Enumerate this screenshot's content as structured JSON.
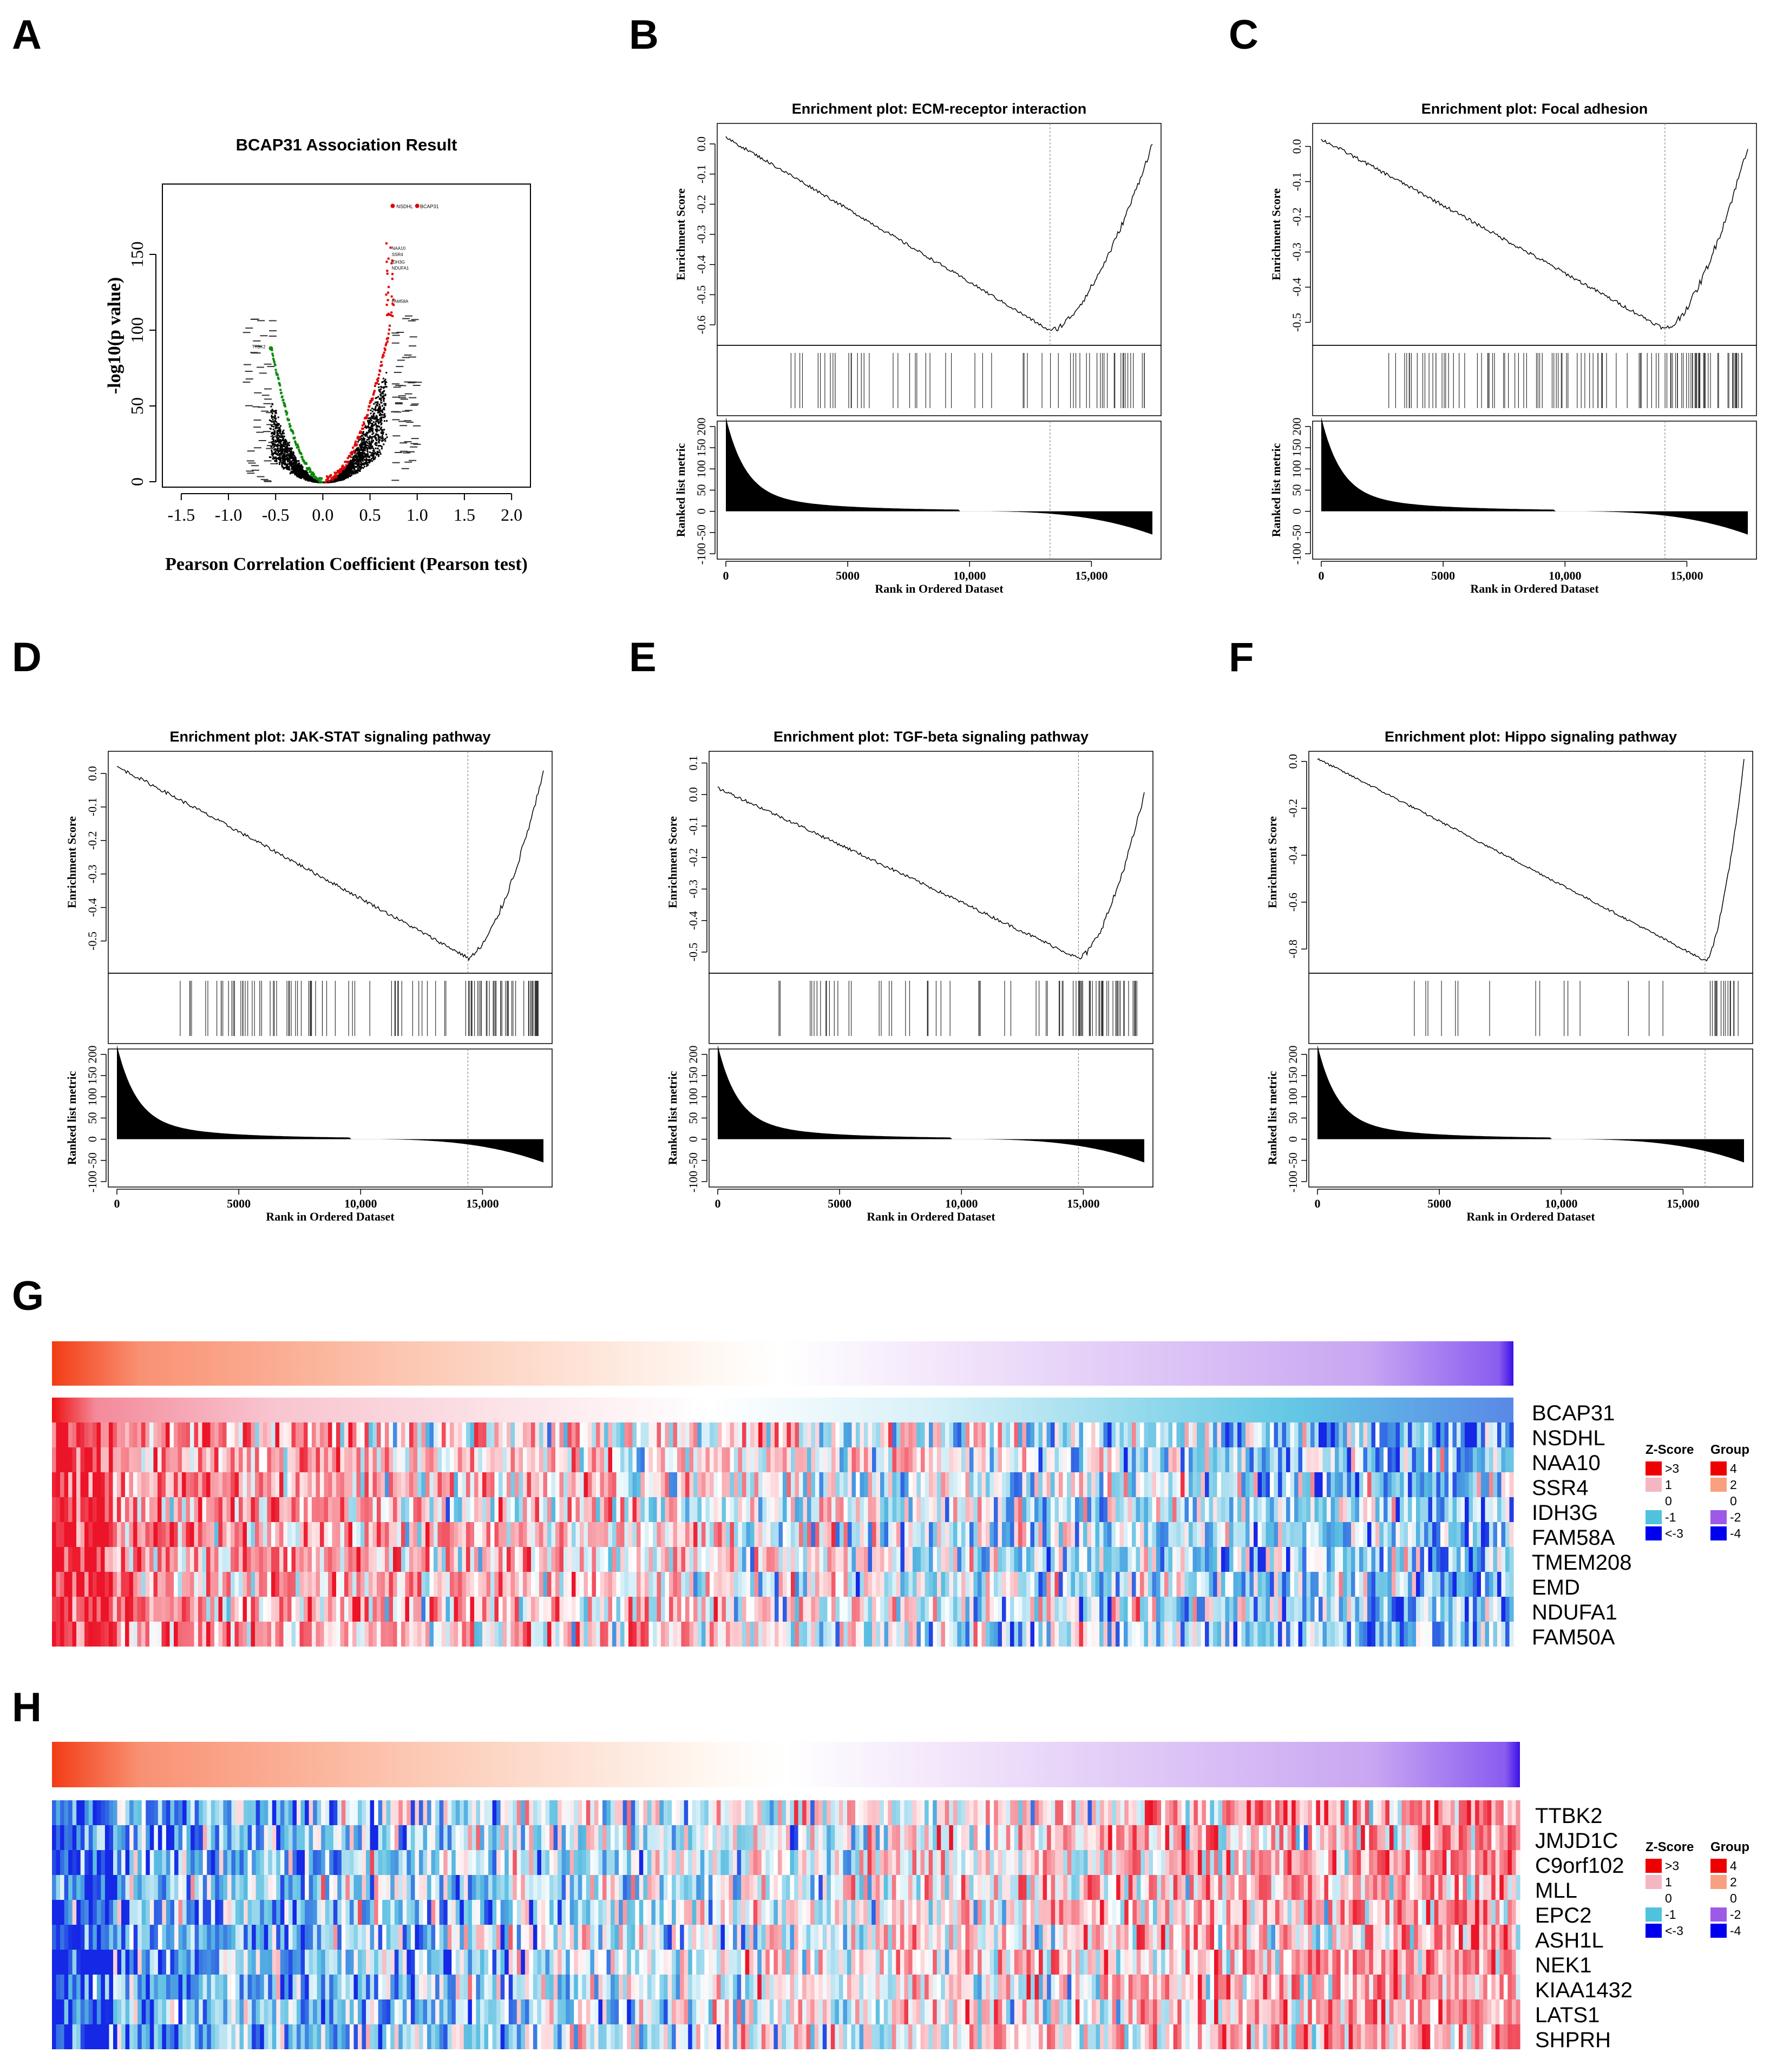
{
  "panels": {
    "A": "A",
    "B": "B",
    "C": "C",
    "D": "D",
    "E": "E",
    "F": "F",
    "G": "G",
    "H": "H"
  },
  "volcano": {
    "title": "BCAP31 Association Result",
    "xlabel": "Pearson Correlation Coefficient (Pearson test)",
    "ylabel": "-log10(p value)",
    "x_ticks": [
      "-1.5",
      "-1.0",
      "-0.5",
      "0.0",
      "0.5",
      "1.0",
      "1.5",
      "2.0"
    ],
    "y_ticks": [
      "0",
      "50",
      "100",
      "150"
    ],
    "top_labels": [
      "NSDHL",
      "BCAP31",
      "NAA10",
      "SSR4",
      "IDH3G",
      "NDUFA1",
      "FAM58A",
      "TTBK2"
    ]
  },
  "gsea_common": {
    "es_label": "Enrichment Score",
    "metric_label": "Ranked list metric",
    "xlabel": "Rank in Ordered Dataset",
    "x_ticks": [
      "0",
      "5000",
      "10,000",
      "15,000"
    ],
    "metric_ticks": [
      "-100",
      "-50",
      "0",
      "50",
      "100",
      "150",
      "200"
    ]
  },
  "gsea": [
    {
      "panel": "B",
      "title": "Enrichment plot: ECM-receptor interaction",
      "es_ticks": [
        "0.0",
        "-0.1",
        "-0.2",
        "-0.3",
        "-0.4",
        "-0.5",
        "-0.6"
      ]
    },
    {
      "panel": "C",
      "title": "Enrichment plot: Focal adhesion",
      "es_ticks": [
        "0.0",
        "-0.1",
        "-0.2",
        "-0.3",
        "-0.4",
        "-0.5"
      ]
    },
    {
      "panel": "D",
      "title": "Enrichment plot: JAK-STAT signaling pathway",
      "es_ticks": [
        "0.0",
        "-0.1",
        "-0.2",
        "-0.3",
        "-0.4",
        "-0.5"
      ]
    },
    {
      "panel": "E",
      "title": "Enrichment plot: TGF-beta signaling pathway",
      "es_ticks": [
        "0.1",
        "0.0",
        "-0.1",
        "-0.2",
        "-0.3",
        "-0.4",
        "-0.5"
      ]
    },
    {
      "panel": "F",
      "title": "Enrichment plot: Hippo signaling pathway",
      "es_ticks": [
        "0.0",
        "-0.2",
        "-0.4",
        "-0.6",
        "-0.8"
      ]
    }
  ],
  "heatmap_G": {
    "genes": [
      "BCAP31",
      "NSDHL",
      "NAA10",
      "SSR4",
      "IDH3G",
      "FAM58A",
      "TMEM208",
      "EMD",
      "NDUFA1",
      "FAM50A"
    ]
  },
  "heatmap_H": {
    "genes": [
      "TTBK2",
      "JMJD1C",
      "C9orf102",
      "MLL",
      "EPC2",
      "ASH1L",
      "NEK1",
      "KIAA1432",
      "LATS1",
      "SHPRH"
    ]
  },
  "legend": {
    "zscore_title": "Z-Score",
    "group_title": "Group",
    "zscore_labels": [
      ">3",
      "1",
      "0",
      "-1",
      "<-3"
    ],
    "group_labels": [
      "4",
      "2",
      "0",
      "-2",
      "-4"
    ],
    "zscore_colors": [
      "#ee0000",
      "#f4b6c3",
      "#ffffff",
      "#4fc3dd",
      "#0000ee"
    ],
    "group_colors": [
      "#ee0000",
      "#f9a080",
      "#ffffff",
      "#9c5ae6",
      "#0000ee"
    ]
  },
  "chart_data": [
    {
      "type": "scatter",
      "title": "BCAP31 Association Result",
      "xlabel": "Pearson Correlation Coefficient (Pearson test)",
      "ylabel": "-log10(p value)",
      "xlim": [
        -1.5,
        2.0
      ],
      "ylim": [
        0,
        190
      ],
      "highlight_points": [
        {
          "label": "NSDHL",
          "x": 0.74,
          "y": 182
        },
        {
          "label": "BCAP31",
          "x": 1.0,
          "y": 182
        },
        {
          "label": "TTBK2",
          "x": -0.55,
          "y": 88
        }
      ]
    },
    {
      "type": "line",
      "title": "Enrichment plot: ECM-receptor interaction",
      "ylim": [
        -0.65,
        0.05
      ],
      "xlim": [
        0,
        17500
      ],
      "es_min_rank": 13300
    },
    {
      "type": "line",
      "title": "Enrichment plot: Focal adhesion",
      "ylim": [
        -0.55,
        0.05
      ],
      "xlim": [
        0,
        17500
      ],
      "es_min_rank": 14100
    },
    {
      "type": "line",
      "title": "Enrichment plot: JAK-STAT signaling pathway",
      "ylim": [
        -0.58,
        0.05
      ],
      "xlim": [
        0,
        17500
      ],
      "es_min_rank": 14400
    },
    {
      "type": "line",
      "title": "Enrichment plot: TGF-beta signaling pathway",
      "ylim": [
        -0.55,
        0.12
      ],
      "xlim": [
        0,
        17500
      ],
      "es_min_rank": 14800
    },
    {
      "type": "line",
      "title": "Enrichment plot: Hippo signaling pathway",
      "ylim": [
        -0.88,
        0.02
      ],
      "xlim": [
        0,
        17500
      ],
      "es_min_rank": 15900
    },
    {
      "type": "heatmap",
      "title": "G",
      "rows": [
        "BCAP31",
        "NSDHL",
        "NAA10",
        "SSR4",
        "IDH3G",
        "FAM58A",
        "TMEM208",
        "EMD",
        "NDUFA1",
        "FAM50A"
      ]
    },
    {
      "type": "heatmap",
      "title": "H",
      "rows": [
        "TTBK2",
        "JMJD1C",
        "C9orf102",
        "MLL",
        "EPC2",
        "ASH1L",
        "NEK1",
        "KIAA1432",
        "LATS1",
        "SHPRH"
      ]
    }
  ]
}
